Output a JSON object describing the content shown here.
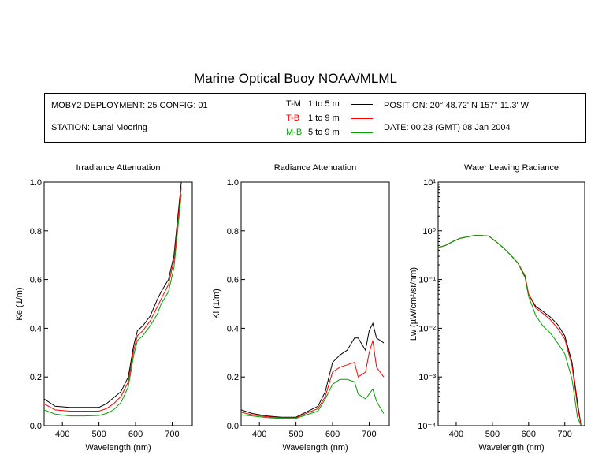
{
  "title": "Marine Optical Buoy NOAA/MLML",
  "info": {
    "deployment": "MOBY2 DEPLOYMENT: 25 CONFIG: 01",
    "station": "STATION: Lanai Mooring",
    "position": "POSITION: 20° 48.72' N   157° 11.3' W",
    "date": "DATE: 00:23 (GMT) 08 Jan 2004",
    "legend": [
      {
        "name": "T-M",
        "range": "1 to 5  m",
        "color": "#000000"
      },
      {
        "name": "T-B",
        "range": "1 to 9  m",
        "color": "#ff0000"
      },
      {
        "name": "M-B",
        "range": "5 to 9  m",
        "color": "#00a000"
      }
    ]
  },
  "chart_data": [
    {
      "type": "line",
      "title": "Irradiance Attenuation",
      "xlabel": "Wavelength (nm)",
      "ylabel": "Ke  (1/m)",
      "xlim": [
        350,
        755
      ],
      "ylim": [
        0,
        1.0
      ],
      "xticks": [
        400,
        500,
        600,
        700
      ],
      "yticks": [
        "0.0",
        "0.2",
        "0.4",
        "0.6",
        "0.8",
        "1.0"
      ],
      "yscale": "linear",
      "x": [
        350,
        380,
        420,
        460,
        500,
        520,
        540,
        560,
        580,
        595,
        605,
        620,
        640,
        660,
        670,
        690,
        705,
        715,
        725
      ],
      "series": [
        {
          "name": "T-M",
          "color": "#000000",
          "values": [
            0.11,
            0.08,
            0.075,
            0.075,
            0.075,
            0.09,
            0.115,
            0.14,
            0.2,
            0.33,
            0.39,
            0.41,
            0.45,
            0.52,
            0.55,
            0.6,
            0.7,
            0.85,
            1.0
          ]
        },
        {
          "name": "T-B",
          "color": "#ff0000",
          "values": [
            0.09,
            0.065,
            0.06,
            0.06,
            0.06,
            0.07,
            0.09,
            0.12,
            0.18,
            0.31,
            0.37,
            0.39,
            0.43,
            0.49,
            0.52,
            0.58,
            0.68,
            0.83,
            0.98
          ]
        },
        {
          "name": "M-B",
          "color": "#00a000",
          "values": [
            0.065,
            0.048,
            0.04,
            0.04,
            0.042,
            0.05,
            0.065,
            0.095,
            0.16,
            0.29,
            0.35,
            0.37,
            0.41,
            0.46,
            0.5,
            0.55,
            0.65,
            0.8,
            0.95
          ]
        }
      ]
    },
    {
      "type": "line",
      "title": "Radiance Attenuation",
      "xlabel": "Wavelength (nm)",
      "ylabel": "Kl  (1/m)",
      "xlim": [
        350,
        755
      ],
      "ylim": [
        0,
        1.0
      ],
      "xticks": [
        400,
        500,
        600,
        700
      ],
      "yticks": [
        "0.0",
        "0.2",
        "0.4",
        "0.6",
        "0.8",
        "1.0"
      ],
      "yscale": "linear",
      "x": [
        350,
        380,
        420,
        460,
        500,
        520,
        540,
        560,
        580,
        600,
        620,
        640,
        660,
        670,
        690,
        700,
        710,
        720,
        740
      ],
      "series": [
        {
          "name": "T-M",
          "color": "#000000",
          "values": [
            0.065,
            0.05,
            0.04,
            0.035,
            0.035,
            0.05,
            0.065,
            0.08,
            0.14,
            0.26,
            0.29,
            0.31,
            0.36,
            0.36,
            0.31,
            0.39,
            0.42,
            0.36,
            0.34
          ]
        },
        {
          "name": "T-B",
          "color": "#ff0000",
          "values": [
            0.055,
            0.045,
            0.037,
            0.033,
            0.033,
            0.045,
            0.058,
            0.07,
            0.12,
            0.22,
            0.24,
            0.25,
            0.26,
            0.2,
            0.22,
            0.3,
            0.35,
            0.24,
            0.2
          ]
        },
        {
          "name": "M-B",
          "color": "#00a000",
          "values": [
            0.045,
            0.04,
            0.033,
            0.03,
            0.03,
            0.04,
            0.05,
            0.06,
            0.11,
            0.17,
            0.19,
            0.19,
            0.18,
            0.13,
            0.11,
            0.13,
            0.15,
            0.1,
            0.05
          ]
        }
      ]
    },
    {
      "type": "line",
      "title": "Water Leaving Radiance",
      "xlabel": "Wavelength (nm)",
      "ylabel": "Lw  (µW/cm²/sr/nm)",
      "xlim": [
        350,
        755
      ],
      "ylim": [
        0.0001,
        10
      ],
      "xticks": [
        400,
        500,
        600,
        700
      ],
      "yticks": [
        "10⁻⁴",
        "10⁻³",
        "10⁻²",
        "10⁻¹",
        "10⁰",
        "10¹"
      ],
      "yscale": "log",
      "x": [
        350,
        370,
        390,
        410,
        430,
        450,
        470,
        490,
        510,
        530,
        550,
        570,
        590,
        600,
        620,
        640,
        660,
        680,
        700,
        720,
        735,
        745
      ],
      "series": [
        {
          "name": "T-M",
          "color": "#000000",
          "values": [
            0.45,
            0.5,
            0.6,
            0.7,
            0.75,
            0.8,
            0.8,
            0.78,
            0.6,
            0.45,
            0.32,
            0.22,
            0.12,
            0.05,
            0.028,
            0.022,
            0.017,
            0.012,
            0.007,
            0.002,
            0.0003,
            0.0001
          ]
        },
        {
          "name": "T-B",
          "color": "#ff0000",
          "values": [
            0.45,
            0.5,
            0.6,
            0.7,
            0.75,
            0.8,
            0.8,
            0.78,
            0.6,
            0.45,
            0.32,
            0.22,
            0.12,
            0.05,
            0.026,
            0.02,
            0.015,
            0.01,
            0.006,
            0.0017,
            0.00025,
            0.0001
          ]
        },
        {
          "name": "M-B",
          "color": "#00a000",
          "values": [
            0.45,
            0.5,
            0.6,
            0.7,
            0.75,
            0.8,
            0.8,
            0.78,
            0.6,
            0.45,
            0.32,
            0.22,
            0.11,
            0.045,
            0.018,
            0.011,
            0.008,
            0.005,
            0.003,
            0.0009,
            0.00015,
            0.0001
          ]
        }
      ]
    }
  ]
}
